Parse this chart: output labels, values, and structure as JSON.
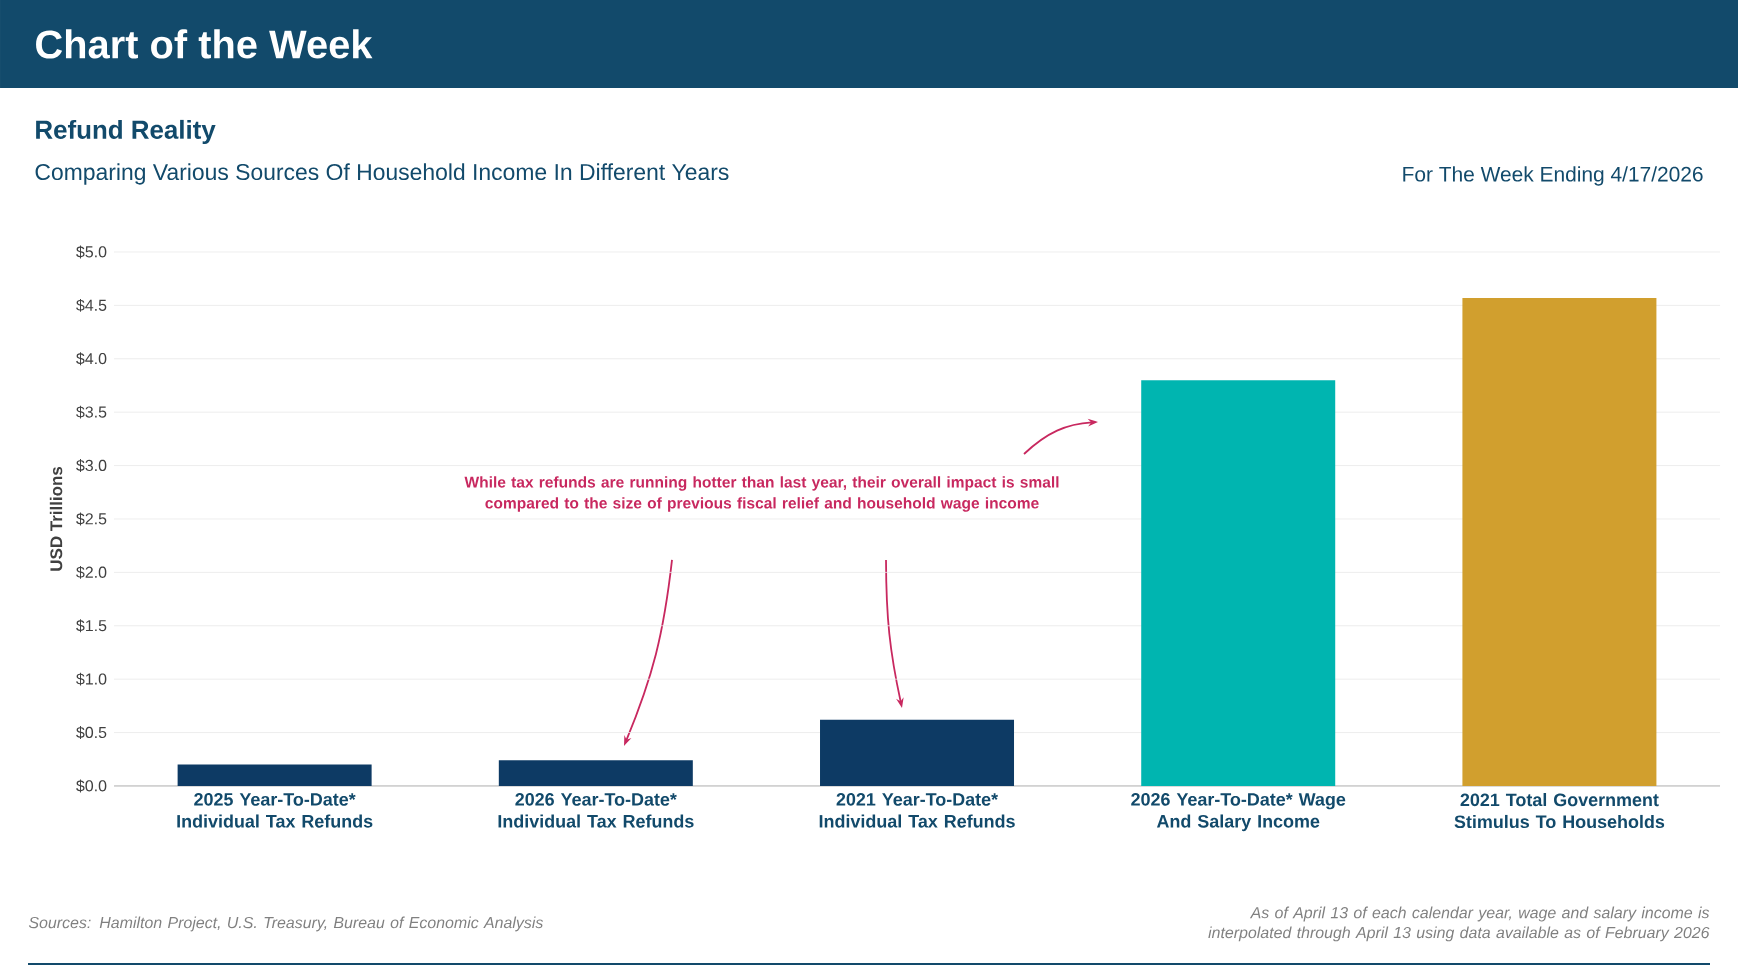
{
  "chart_data": {
    "type": "bar",
    "title": "Refund Reality",
    "subtitle": "Comparing Various Sources Of Household Income In Different Years",
    "ylabel": "USD Trillions",
    "categories": [
      "2025 Year-To-Date* Individual Tax Refunds",
      "2026 Year-To-Date* Individual Tax Refunds",
      "2021 Year-To-Date* Individual Tax Refunds",
      "2026 Year-To-Date* Wage And Salary Income",
      "2021 Total Government Stimulus To Households"
    ],
    "values": [
      0.2,
      0.24,
      0.62,
      3.8,
      4.57
    ],
    "colors": [
      "#0d3a64",
      "#0d3a64",
      "#0d3a64",
      "#00b5b0",
      "#d19f2e"
    ],
    "ylim": [
      0,
      5
    ],
    "yticks": [
      {
        "value": 0,
        "label": "$0.0"
      },
      {
        "value": 0.5,
        "label": "$0.5"
      },
      {
        "value": 1,
        "label": "$1.0"
      },
      {
        "value": 1.5,
        "label": "$1.5"
      },
      {
        "value": 2,
        "label": "$2.0"
      },
      {
        "value": 2.5,
        "label": "$2.5"
      },
      {
        "value": 3,
        "label": "$3.0"
      },
      {
        "value": 3.5,
        "label": "$3.5"
      },
      {
        "value": 4,
        "label": "$4.0"
      },
      {
        "value": 4.5,
        "label": "$4.5"
      },
      {
        "value": 5,
        "label": "$5.0"
      }
    ],
    "grid": "y",
    "annotations": [
      "Chart of the Week",
      "For The Week Ending 4/17/2026",
      "While tax refunds are running hotter than last year, their overall impact is small compared to the size of previous fiscal relief and household wage income",
      "Sources: Hamilton Project, U.S. Treasury, Bureau of Economic Analysis",
      "As of April 13 of each calendar year, wage and salary income is interpolated through April 13 using data available as of February 2026"
    ]
  }
}
